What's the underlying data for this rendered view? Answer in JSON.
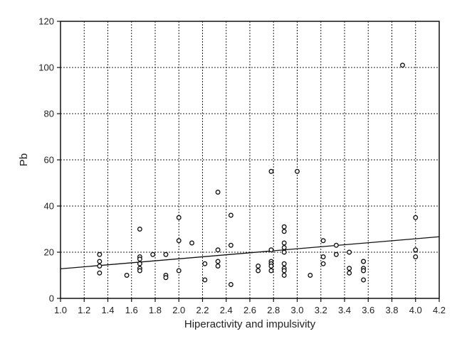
{
  "chart_data": {
    "type": "scatter",
    "title": "",
    "xlabel": "Hiperactivity and impulsivity",
    "ylabel": "Pb",
    "xlim": [
      1.0,
      4.2
    ],
    "ylim": [
      0,
      120
    ],
    "xticks": [
      "1.0",
      "1.2",
      "1.4",
      "1.6",
      "1.8",
      "2.0",
      "2.2",
      "2.4",
      "2.6",
      "2.8",
      "3.0",
      "3.2",
      "3.4",
      "3.6",
      "3.8",
      "4.0",
      "4.2"
    ],
    "yticks": [
      "0",
      "20",
      "40",
      "60",
      "80",
      "100",
      "120"
    ],
    "grid": true,
    "grid_style": "dotted",
    "series": [
      {
        "marker": "hollow-circle",
        "points": [
          [
            1.33,
            19
          ],
          [
            1.33,
            16
          ],
          [
            1.33,
            14
          ],
          [
            1.33,
            11
          ],
          [
            1.56,
            10
          ],
          [
            1.67,
            30
          ],
          [
            1.67,
            18
          ],
          [
            1.67,
            17
          ],
          [
            1.67,
            15
          ],
          [
            1.67,
            13
          ],
          [
            1.67,
            12
          ],
          [
            1.78,
            19
          ],
          [
            1.89,
            19
          ],
          [
            1.89,
            10
          ],
          [
            1.89,
            9
          ],
          [
            2.0,
            35
          ],
          [
            2.0,
            25
          ],
          [
            2.0,
            12
          ],
          [
            2.11,
            24
          ],
          [
            2.22,
            15
          ],
          [
            2.22,
            8
          ],
          [
            2.33,
            46
          ],
          [
            2.33,
            21
          ],
          [
            2.33,
            16
          ],
          [
            2.33,
            14
          ],
          [
            2.44,
            36
          ],
          [
            2.44,
            23
          ],
          [
            2.44,
            6
          ],
          [
            2.67,
            14
          ],
          [
            2.67,
            12
          ],
          [
            2.78,
            55
          ],
          [
            2.78,
            21
          ],
          [
            2.78,
            16
          ],
          [
            2.78,
            15
          ],
          [
            2.78,
            14
          ],
          [
            2.78,
            12
          ],
          [
            2.89,
            31
          ],
          [
            2.89,
            29
          ],
          [
            2.89,
            24
          ],
          [
            2.89,
            22
          ],
          [
            2.89,
            20
          ],
          [
            2.89,
            15
          ],
          [
            2.89,
            13
          ],
          [
            2.89,
            12
          ],
          [
            2.89,
            10
          ],
          [
            3.0,
            55
          ],
          [
            3.11,
            10
          ],
          [
            3.22,
            25
          ],
          [
            3.22,
            18
          ],
          [
            3.22,
            15
          ],
          [
            3.33,
            23
          ],
          [
            3.33,
            19
          ],
          [
            3.44,
            20
          ],
          [
            3.44,
            13
          ],
          [
            3.44,
            11
          ],
          [
            3.56,
            16
          ],
          [
            3.56,
            13
          ],
          [
            3.56,
            8
          ],
          [
            3.56,
            16
          ],
          [
            3.56,
            12
          ],
          [
            3.89,
            101
          ],
          [
            4.0,
            35
          ],
          [
            4.0,
            21
          ],
          [
            4.0,
            18
          ]
        ]
      }
    ],
    "trendline": {
      "type": "linear",
      "x": [
        1.0,
        4.2
      ],
      "y": [
        12.8,
        26.7
      ]
    }
  }
}
